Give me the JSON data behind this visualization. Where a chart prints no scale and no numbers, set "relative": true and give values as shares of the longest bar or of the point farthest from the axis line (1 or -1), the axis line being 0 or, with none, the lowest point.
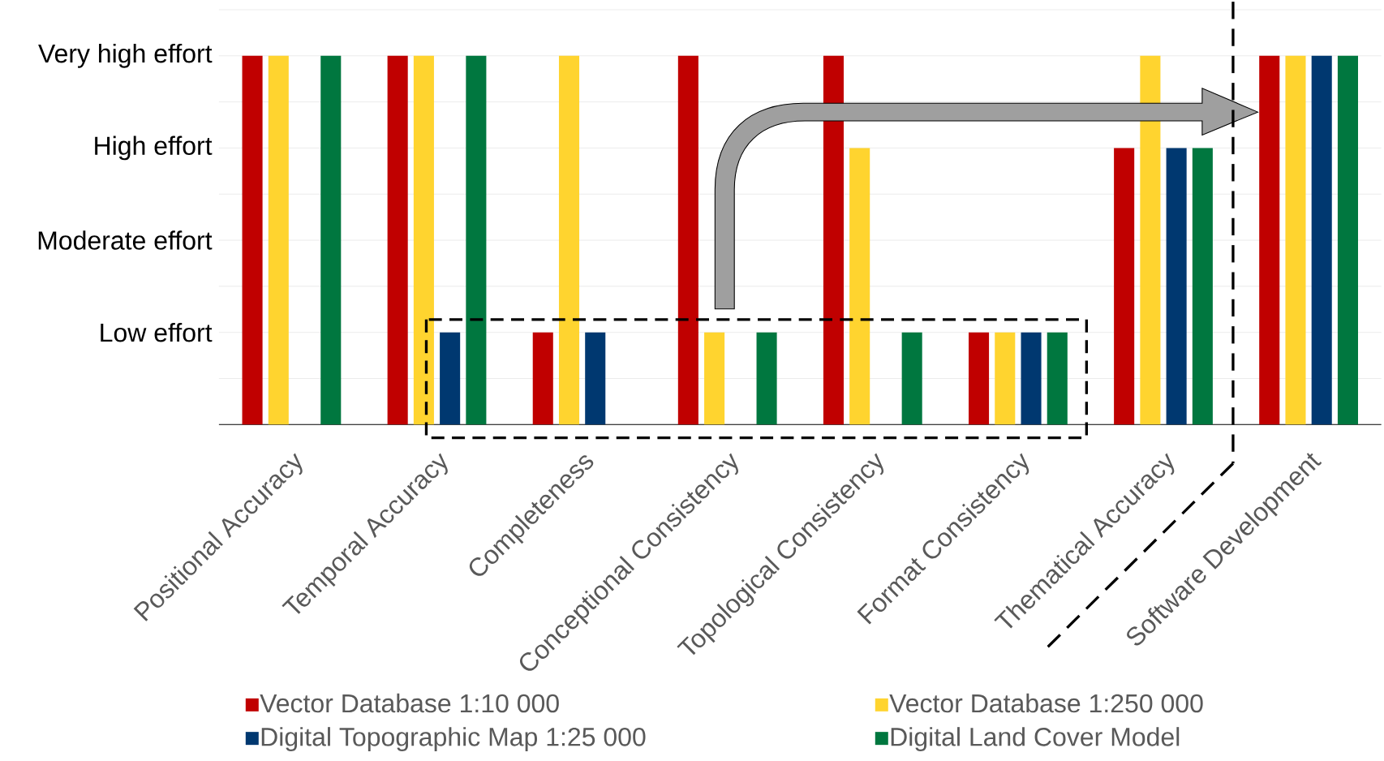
{
  "chart_data": {
    "type": "bar",
    "relative": true,
    "categories": [
      "Positional Accuracy",
      "Temporal Accuracy",
      "Completeness",
      "Conceptional Consistency",
      "Topological Consistency",
      "Format Consistency",
      "Thematical Accuracy",
      "Software Development"
    ],
    "series": [
      {
        "name": "Vector Database 1:10 000",
        "color": "#c00000",
        "values": [
          1,
          1,
          0.25,
          1,
          1,
          0.25,
          0.75,
          1
        ]
      },
      {
        "name": "Vector Database 1:250 000",
        "color": "#ffd42f",
        "values": [
          1,
          1,
          1,
          0.25,
          0.75,
          0.25,
          1,
          1
        ]
      },
      {
        "name": "Digital Topographic Map 1:25 000",
        "color": "#003870",
        "values": [
          null,
          0.25,
          0.25,
          null,
          null,
          0.25,
          0.75,
          1
        ]
      },
      {
        "name": "Digital Land Cover Model",
        "color": "#00773f",
        "values": [
          1,
          1,
          null,
          0.25,
          0.25,
          0.25,
          0.75,
          1
        ]
      }
    ],
    "ref_lines": [
      {
        "axis": "y",
        "value": 0.125,
        "color": "#d9d9d9"
      },
      {
        "axis": "y",
        "value": 0.25,
        "label": "Low effort",
        "color": "#d9d9d9"
      },
      {
        "axis": "y",
        "value": 0.375,
        "color": "#d9d9d9"
      },
      {
        "axis": "y",
        "value": 0.5,
        "label": "Moderate effort",
        "color": "#d9d9d9"
      },
      {
        "axis": "y",
        "value": 0.625,
        "color": "#d9d9d9"
      },
      {
        "axis": "y",
        "value": 0.75,
        "label": "High effort",
        "color": "#d9d9d9"
      },
      {
        "axis": "y",
        "value": 0.875,
        "color": "#d9d9d9"
      },
      {
        "axis": "y",
        "value": 1,
        "label": "Very high effort",
        "color": "#d9d9d9"
      },
      {
        "axis": "y",
        "value": 1.125,
        "color": "#d9d9d9"
      }
    ],
    "legend": "bottom"
  }
}
